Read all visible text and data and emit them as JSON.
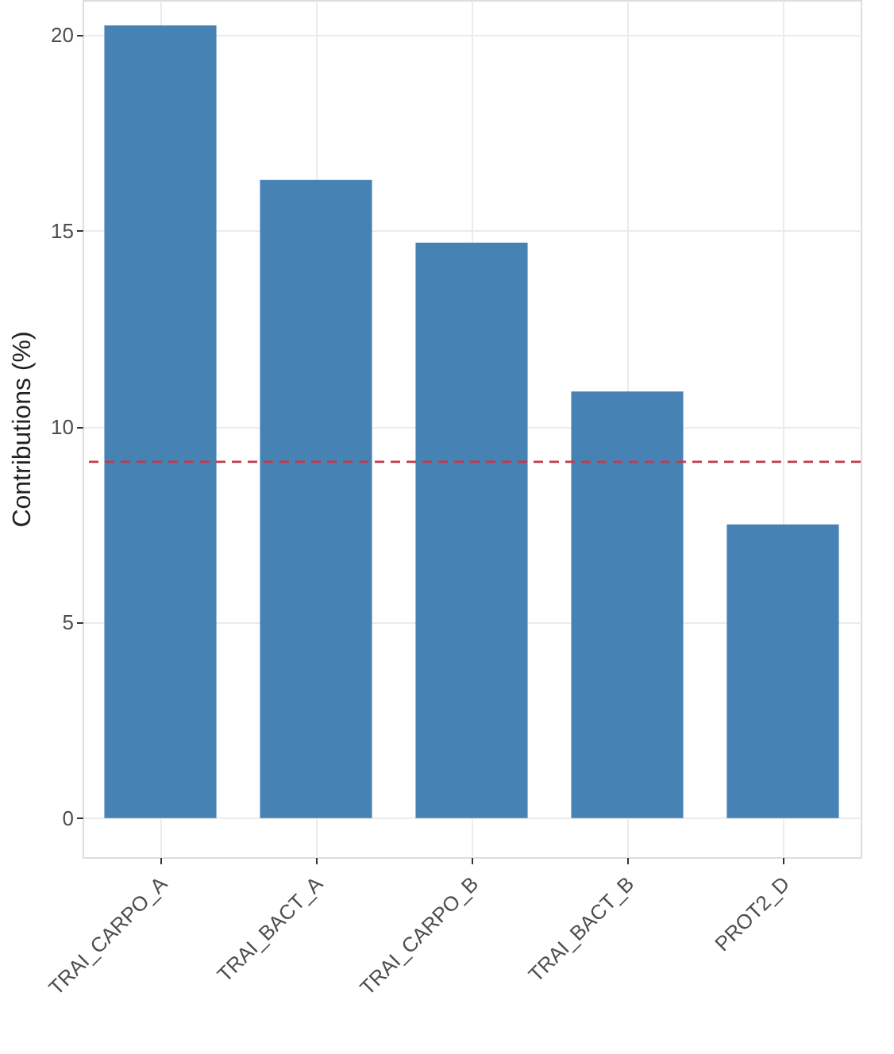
{
  "chart_data": {
    "type": "bar",
    "ylabel": "Contributions (%)",
    "categories": [
      "TRAI_CARPO_A",
      "TRAI_BACT_A",
      "TRAI_CARPO_B",
      "TRAI_BACT_B",
      "PROT2_D"
    ],
    "values": [
      20.25,
      16.3,
      14.7,
      10.9,
      7.5
    ],
    "color": "#4682b4",
    "ylim": [
      -1,
      20.9
    ],
    "yticks": [
      0,
      5,
      10,
      15,
      20
    ],
    "grid": true,
    "ref_lines": [
      {
        "axis": "y",
        "value": 9.1,
        "color": "#c8384a",
        "line_style": "dashed"
      }
    ]
  }
}
